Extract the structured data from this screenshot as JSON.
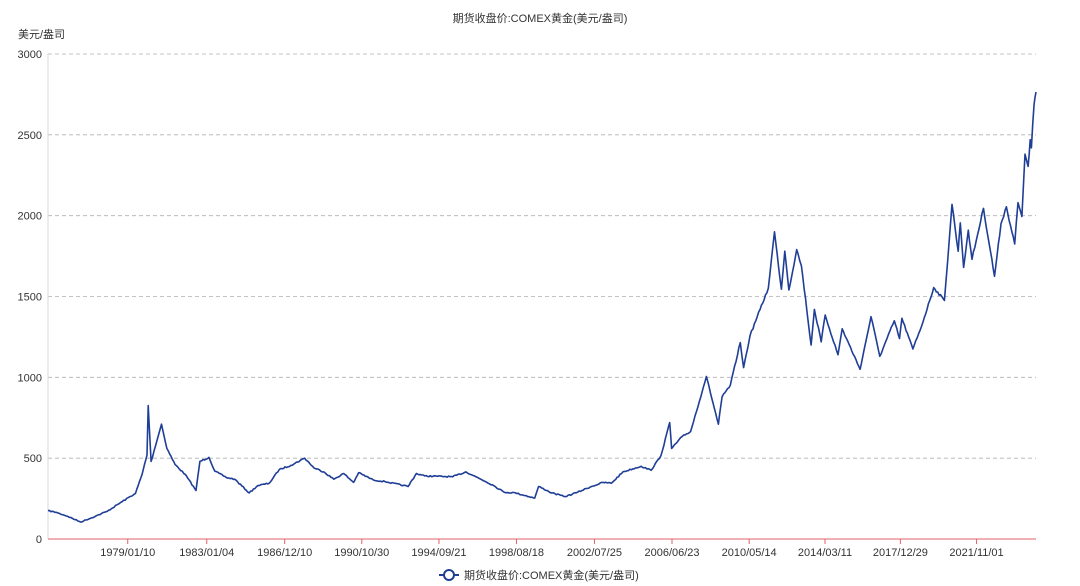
{
  "chart_data": {
    "type": "line",
    "title": "期货收盘价:COMEX黄金(美元/盎司)",
    "ylabel": "美元/盎司",
    "xlabel": "",
    "ylim": [
      0,
      3000
    ],
    "yticks": [
      "0",
      "500",
      "1000",
      "1500",
      "2000",
      "2500",
      "3000"
    ],
    "xticks": [
      "1979/01/10",
      "1983/01/04",
      "1986/12/10",
      "1990/10/30",
      "1994/09/21",
      "1998/08/18",
      "2002/07/25",
      "2006/06/23",
      "2010/05/14",
      "2014/03/11",
      "2017/12/29",
      "2021/11/01"
    ],
    "xlim": [
      "1975/01/02",
      "2024/10/31"
    ],
    "grid": true,
    "legend": "bottom-center",
    "colors": {
      "line": "#1f3e96",
      "axis": "#e0626a",
      "grid": "#b0b0b0"
    },
    "series": [
      {
        "name": "期货收盘价:COMEX黄金(美元/盎司)",
        "points": [
          [
            "1975/01/02",
            175
          ],
          [
            "1975/06/01",
            165
          ],
          [
            "1976/01/01",
            140
          ],
          [
            "1976/08/25",
            105
          ],
          [
            "1977/06/01",
            142
          ],
          [
            "1978/01/01",
            172
          ],
          [
            "1978/10/01",
            232
          ],
          [
            "1979/06/01",
            282
          ],
          [
            "1979/10/01",
            400
          ],
          [
            "1979/12/31",
            520
          ],
          [
            "1980/01/21",
            825
          ],
          [
            "1980/03/15",
            480
          ],
          [
            "1980/09/22",
            710
          ],
          [
            "1981/01/01",
            560
          ],
          [
            "1981/06/01",
            460
          ],
          [
            "1981/12/01",
            400
          ],
          [
            "1982/06/21",
            300
          ],
          [
            "1982/09/01",
            480
          ],
          [
            "1983/02/15",
            505
          ],
          [
            "1983/06/01",
            420
          ],
          [
            "1984/01/01",
            380
          ],
          [
            "1984/06/01",
            370
          ],
          [
            "1985/02/25",
            285
          ],
          [
            "1985/08/01",
            330
          ],
          [
            "1986/03/01",
            345
          ],
          [
            "1986/09/01",
            430
          ],
          [
            "1987/04/01",
            455
          ],
          [
            "1987/12/14",
            500
          ],
          [
            "1988/06/01",
            440
          ],
          [
            "1988/12/01",
            415
          ],
          [
            "1989/06/01",
            370
          ],
          [
            "1989/12/01",
            405
          ],
          [
            "1990/06/01",
            350
          ],
          [
            "1990/09/01",
            410
          ],
          [
            "1991/06/01",
            365
          ],
          [
            "1992/01/01",
            355
          ],
          [
            "1993/03/01",
            325
          ],
          [
            "1993/08/01",
            405
          ],
          [
            "1994/01/01",
            390
          ],
          [
            "1995/06/01",
            385
          ],
          [
            "1996/02/02",
            415
          ],
          [
            "1996/08/01",
            385
          ],
          [
            "1997/06/01",
            335
          ],
          [
            "1998/01/01",
            290
          ],
          [
            "1998/08/01",
            285
          ],
          [
            "1999/07/20",
            253
          ],
          [
            "1999/10/01",
            325
          ],
          [
            "2000/06/01",
            285
          ],
          [
            "2001/02/01",
            262
          ],
          [
            "2001/09/20",
            290
          ],
          [
            "2002/06/01",
            325
          ],
          [
            "2003/01/01",
            350
          ],
          [
            "2003/06/01",
            345
          ],
          [
            "2004/01/01",
            415
          ],
          [
            "2004/12/01",
            450
          ],
          [
            "2005/06/01",
            425
          ],
          [
            "2005/12/01",
            515
          ],
          [
            "2006/05/12",
            720
          ],
          [
            "2006/06/15",
            560
          ],
          [
            "2007/01/01",
            635
          ],
          [
            "2007/06/01",
            665
          ],
          [
            "2008/03/17",
            1005
          ],
          [
            "2008/10/24",
            710
          ],
          [
            "2009/01/01",
            880
          ],
          [
            "2009/06/01",
            950
          ],
          [
            "2009/12/01",
            1215
          ],
          [
            "2010/02/01",
            1060
          ],
          [
            "2010/06/01",
            1260
          ],
          [
            "2010/12/01",
            1420
          ],
          [
            "2011/05/01",
            1550
          ],
          [
            "2011/08/23",
            1900
          ],
          [
            "2011/12/29",
            1545
          ],
          [
            "2012/02/29",
            1780
          ],
          [
            "2012/05/16",
            1540
          ],
          [
            "2012/10/05",
            1790
          ],
          [
            "2013/01/01",
            1690
          ],
          [
            "2013/06/28",
            1200
          ],
          [
            "2013/08/28",
            1420
          ],
          [
            "2014/01/01",
            1220
          ],
          [
            "2014/03/14",
            1385
          ],
          [
            "2014/11/05",
            1140
          ],
          [
            "2015/01/22",
            1300
          ],
          [
            "2015/12/17",
            1050
          ],
          [
            "2016/07/06",
            1375
          ],
          [
            "2016/12/15",
            1130
          ],
          [
            "2017/09/08",
            1350
          ],
          [
            "2017/12/12",
            1240
          ],
          [
            "2018/01/25",
            1365
          ],
          [
            "2018/08/16",
            1175
          ],
          [
            "2019/02/20",
            1345
          ],
          [
            "2019/09/04",
            1555
          ],
          [
            "2020/03/19",
            1475
          ],
          [
            "2020/08/06",
            2070
          ],
          [
            "2020/11/27",
            1780
          ],
          [
            "2021/01/05",
            1955
          ],
          [
            "2021/03/08",
            1680
          ],
          [
            "2021/06/01",
            1910
          ],
          [
            "2021/08/09",
            1730
          ],
          [
            "2022/03/08",
            2045
          ],
          [
            "2022/09/28",
            1625
          ],
          [
            "2023/01/25",
            1950
          ],
          [
            "2023/05/04",
            2055
          ],
          [
            "2023/10/05",
            1825
          ],
          [
            "2023/12/04",
            2080
          ],
          [
            "2024/02/14",
            1995
          ],
          [
            "2024/04/12",
            2380
          ],
          [
            "2024/06/07",
            2305
          ],
          [
            "2024/07/17",
            2470
          ],
          [
            "2024/08/07",
            2420
          ],
          [
            "2024/09/26",
            2690
          ],
          [
            "2024/10/31",
            2765
          ]
        ]
      }
    ]
  }
}
